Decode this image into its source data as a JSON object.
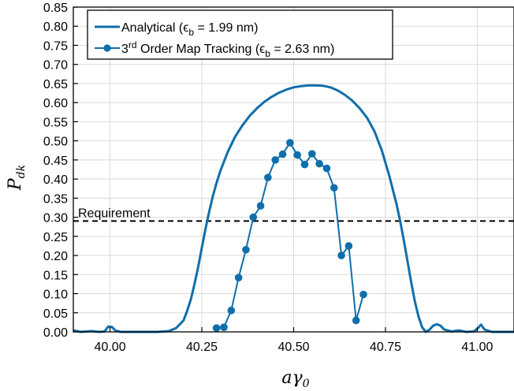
{
  "chart_data": {
    "type": "line",
    "xlabel": "aγ0",
    "ylabel": "Pdk",
    "xlim": [
      39.9,
      41.1
    ],
    "ylim": [
      0,
      0.85
    ],
    "x_ticks": [
      "40.00",
      "40.25",
      "40.50",
      "40.75",
      "41.00"
    ],
    "x_tick_values": [
      40.0,
      40.25,
      40.5,
      40.75,
      41.0
    ],
    "y_ticks": [
      "0.00",
      "0.05",
      "0.10",
      "0.15",
      "0.20",
      "0.25",
      "0.30",
      "0.35",
      "0.40",
      "0.45",
      "0.50",
      "0.55",
      "0.60",
      "0.65",
      "0.70",
      "0.75",
      "0.80",
      "0.85"
    ],
    "y_tick_values": [
      0,
      0.05,
      0.1,
      0.15,
      0.2,
      0.25,
      0.3,
      0.35,
      0.4,
      0.45,
      0.5,
      0.55,
      0.6,
      0.65,
      0.7,
      0.75,
      0.8,
      0.85
    ],
    "grid": true,
    "legend_position": "top-left",
    "color": "#0e6fab",
    "series": [
      {
        "name": "Analytical (ϵb = 1.99 nm)",
        "legend_main": "Analytical (ϵ",
        "legend_sub": "b",
        "legend_rest": " = 1.99 nm)",
        "markers": false,
        "x": [
          39.9,
          39.92,
          39.95,
          39.97,
          39.985,
          39.995,
          40.005,
          40.015,
          40.03,
          40.06,
          40.1,
          40.13,
          40.16,
          40.18,
          40.2,
          40.21,
          40.22,
          40.23,
          40.24,
          40.25,
          40.26,
          40.27,
          40.28,
          40.29,
          40.3,
          40.32,
          40.34,
          40.36,
          40.38,
          40.4,
          40.42,
          40.44,
          40.46,
          40.48,
          40.5,
          40.52,
          40.54,
          40.56,
          40.58,
          40.6,
          40.62,
          40.64,
          40.66,
          40.68,
          40.7,
          40.72,
          40.74,
          40.76,
          40.78,
          40.79,
          40.8,
          40.81,
          40.82,
          40.83,
          40.84,
          40.85,
          40.86,
          40.87,
          40.88,
          40.89,
          40.9,
          40.91,
          40.93,
          40.95,
          40.97,
          40.99,
          41.0,
          41.01,
          41.02,
          41.04,
          41.07,
          41.1
        ],
        "y": [
          0.004,
          0.0,
          0.002,
          0.0,
          0.001,
          0.014,
          0.013,
          0.003,
          0.0,
          0.0,
          0.0,
          0.0,
          0.002,
          0.01,
          0.03,
          0.055,
          0.085,
          0.125,
          0.17,
          0.22,
          0.27,
          0.315,
          0.355,
          0.39,
          0.42,
          0.47,
          0.51,
          0.54,
          0.565,
          0.585,
          0.602,
          0.615,
          0.626,
          0.634,
          0.64,
          0.643,
          0.645,
          0.645,
          0.644,
          0.64,
          0.632,
          0.62,
          0.605,
          0.585,
          0.56,
          0.525,
          0.475,
          0.41,
          0.335,
          0.29,
          0.24,
          0.185,
          0.13,
          0.08,
          0.04,
          0.012,
          0.0,
          0.006,
          0.016,
          0.02,
          0.016,
          0.006,
          0.001,
          0.004,
          0.0,
          0.001,
          0.008,
          0.019,
          0.006,
          0.0,
          0.0,
          0.0
        ]
      },
      {
        "name": "3rd Order Map Tracking (ϵb = 2.63 nm)",
        "legend_main": "3",
        "legend_sup": "rd",
        "legend_mid": " Order Map Tracking (ϵ",
        "legend_sub": "b",
        "legend_rest": " = 2.63 nm)",
        "markers": true,
        "x": [
          40.29,
          40.31,
          40.33,
          40.35,
          40.37,
          40.39,
          40.41,
          40.43,
          40.45,
          40.47,
          40.49,
          40.51,
          40.53,
          40.55,
          40.57,
          40.59,
          40.61,
          40.63,
          40.65,
          40.67,
          40.69
        ],
        "y": [
          0.01,
          0.012,
          0.056,
          0.142,
          0.215,
          0.3,
          0.33,
          0.404,
          0.45,
          0.465,
          0.495,
          0.463,
          0.438,
          0.466,
          0.44,
          0.428,
          0.377,
          0.2,
          0.225,
          0.03,
          0.098
        ]
      }
    ],
    "threshold": {
      "label": "Requirement",
      "y": 0.29
    }
  }
}
